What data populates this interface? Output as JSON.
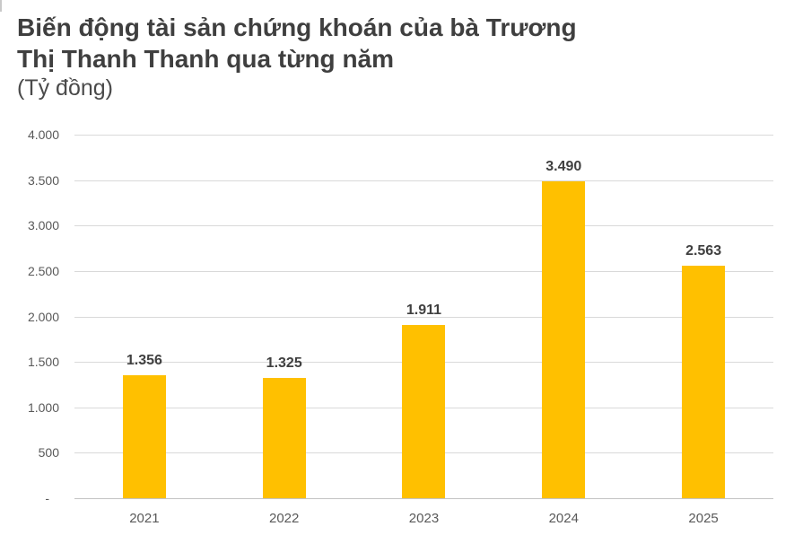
{
  "header": {
    "title_lines": [
      "Biến động tài sản chứng khoán của bà Trương",
      "Thị Thanh Thanh qua từng năm"
    ],
    "subtitle": "(Tỷ đồng)"
  },
  "chart_data": {
    "type": "bar",
    "title": "Biến động tài sản chứng khoán của bà Trương Thị Thanh Thanh qua từng năm",
    "subtitle_unit": "(Tỷ đồng)",
    "categories": [
      "2021",
      "2022",
      "2023",
      "2024",
      "2025"
    ],
    "values": [
      1356,
      1325,
      1911,
      3490,
      2563
    ],
    "value_labels": [
      "1.356",
      "1.325",
      "1.911",
      "3.490",
      "2.563"
    ],
    "xlabel": "",
    "ylabel": "",
    "ylim": [
      0,
      4000
    ],
    "y_ticks": [
      {
        "value": 4000,
        "label": "4.000"
      },
      {
        "value": 3500,
        "label": "3.500"
      },
      {
        "value": 3000,
        "label": "3.000"
      },
      {
        "value": 2500,
        "label": "2.500"
      },
      {
        "value": 2000,
        "label": "2.000"
      },
      {
        "value": 1500,
        "label": "1.500"
      },
      {
        "value": 1000,
        "label": "1.000"
      },
      {
        "value": 500,
        "label": "500"
      },
      {
        "value": 0,
        "label": "-"
      }
    ],
    "grid": true,
    "legend": false
  },
  "colors": {
    "bar": "#FFC000",
    "title_text": "#3F3F3F",
    "axis_text": "#595959",
    "data_label_text": "#404040",
    "gridline": "#D9D9D9",
    "axis_line": "#C3C3C3",
    "background": "#FFFFFF"
  }
}
